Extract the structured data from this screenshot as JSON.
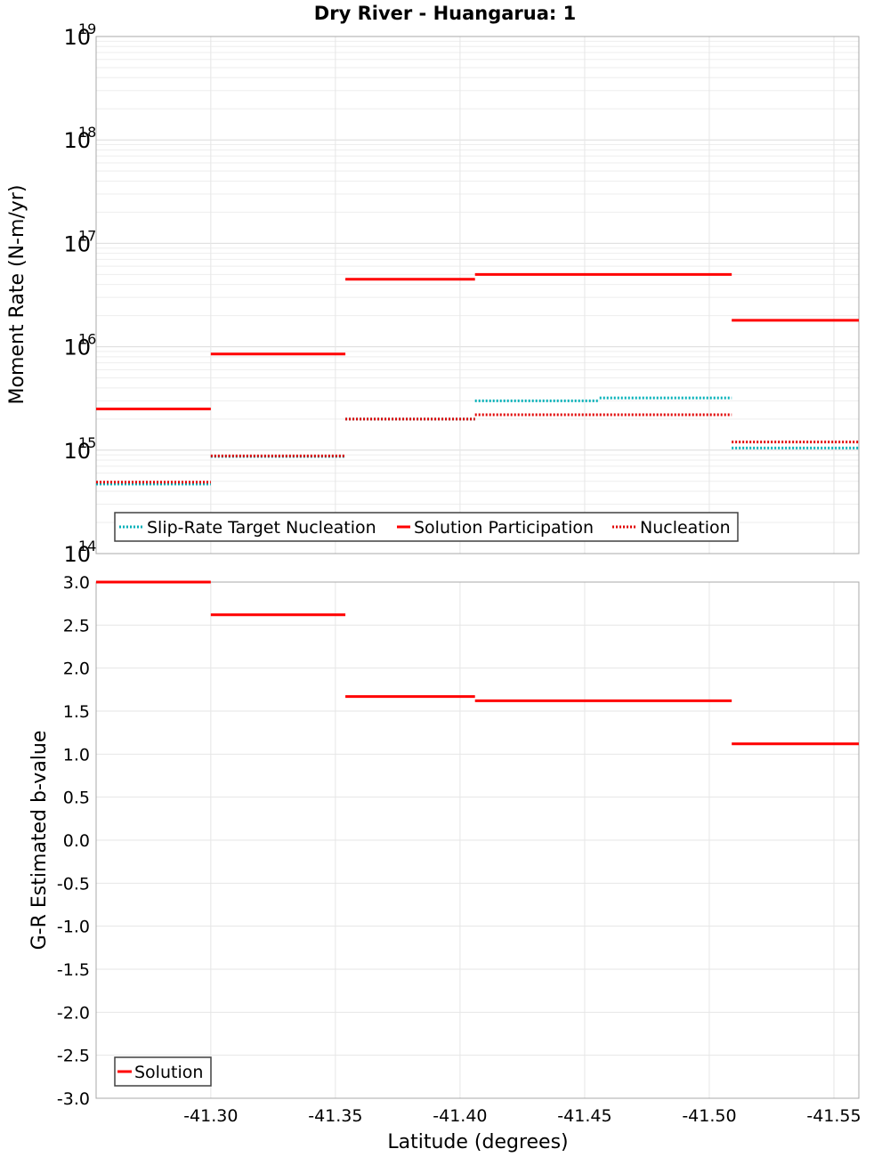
{
  "chart_data": [
    {
      "type": "line",
      "title": "Dry River - Huangarua: 1",
      "xlabel": "Latitude (degrees)",
      "ylabel": "Moment Rate (N-m/yr)",
      "yscale": "log",
      "ylim": [
        100000000000000.0,
        1e+19
      ],
      "xlim": [
        -41.254,
        -41.56
      ],
      "xticks": [
        -41.3,
        -41.35,
        -41.4,
        -41.45,
        -41.5,
        -41.55
      ],
      "xtick_labels": [
        "-41.30",
        "-41.35",
        "-41.40",
        "-41.45",
        "-41.50",
        "-41.55"
      ],
      "ytick_labels": [
        {
          "base": "10",
          "exp": "14",
          "value": 100000000000000.0
        },
        {
          "base": "10",
          "exp": "15",
          "value": 1000000000000000.0
        },
        {
          "base": "10",
          "exp": "16",
          "value": 1e+16
        },
        {
          "base": "10",
          "exp": "17",
          "value": 1e+17
        },
        {
          "base": "10",
          "exp": "18",
          "value": 1e+18
        },
        {
          "base": "10",
          "exp": "19",
          "value": 1e+19
        }
      ],
      "legend": {
        "position": "bottom-left",
        "entries": [
          "Slip-Rate Target Nucleation",
          "Solution Participation",
          "Nucleation"
        ]
      },
      "series": [
        {
          "name": "Slip-Rate Target Nucleation",
          "color": "#00b0b8",
          "style": "dotted",
          "segments": [
            {
              "x0": -41.254,
              "x1": -41.3,
              "y": 470000000000000.0
            },
            {
              "x0": -41.3,
              "x1": -41.354,
              "y": 870000000000000.0
            },
            {
              "x0": -41.354,
              "x1": -41.406,
              "y": 2000000000000000.0
            },
            {
              "x0": -41.406,
              "x1": -41.456,
              "y": 3000000000000000.0
            },
            {
              "x0": -41.456,
              "x1": -41.509,
              "y": 3200000000000000.0
            },
            {
              "x0": -41.509,
              "x1": -41.56,
              "y": 1050000000000000.0
            }
          ]
        },
        {
          "name": "Solution Participation",
          "color": "#ff0000",
          "style": "solid",
          "segments": [
            {
              "x0": -41.254,
              "x1": -41.3,
              "y": 2500000000000000.0
            },
            {
              "x0": -41.3,
              "x1": -41.354,
              "y": 8500000000000000.0
            },
            {
              "x0": -41.354,
              "x1": -41.406,
              "y": 4.5e+16
            },
            {
              "x0": -41.406,
              "x1": -41.509,
              "y": 5e+16
            },
            {
              "x0": -41.509,
              "x1": -41.56,
              "y": 1.8e+16
            }
          ]
        },
        {
          "name": "Nucleation",
          "color": "#e00000",
          "style": "dotted",
          "segments": [
            {
              "x0": -41.254,
              "x1": -41.3,
              "y": 490000000000000.0
            },
            {
              "x0": -41.3,
              "x1": -41.354,
              "y": 880000000000000.0
            },
            {
              "x0": -41.354,
              "x1": -41.406,
              "y": 2000000000000000.0
            },
            {
              "x0": -41.406,
              "x1": -41.509,
              "y": 2200000000000000.0
            },
            {
              "x0": -41.509,
              "x1": -41.56,
              "y": 1200000000000000.0
            }
          ]
        }
      ]
    },
    {
      "type": "line",
      "title": "",
      "xlabel": "Latitude (degrees)",
      "ylabel": "G-R Estimated b-value",
      "ylim": [
        -3.0,
        3.0
      ],
      "xlim": [
        -41.254,
        -41.56
      ],
      "yticks": [
        3.0,
        2.5,
        2.0,
        1.5,
        1.0,
        0.5,
        0.0,
        -0.5,
        -1.0,
        -1.5,
        -2.0,
        -2.5,
        -3.0
      ],
      "ytick_labels": [
        "3.0",
        "2.5",
        "2.0",
        "1.5",
        "1.0",
        "0.5",
        "0.0",
        "-0.5",
        "-1.0",
        "-1.5",
        "-2.0",
        "-2.5",
        "-3.0"
      ],
      "legend": {
        "position": "bottom-left",
        "entries": [
          "Solution"
        ]
      },
      "series": [
        {
          "name": "Solution",
          "color": "#ff0000",
          "style": "solid",
          "segments": [
            {
              "x0": -41.254,
              "x1": -41.3,
              "y": 3.0
            },
            {
              "x0": -41.3,
              "x1": -41.354,
              "y": 2.62
            },
            {
              "x0": -41.354,
              "x1": -41.406,
              "y": 1.67
            },
            {
              "x0": -41.406,
              "x1": -41.509,
              "y": 1.62
            },
            {
              "x0": -41.509,
              "x1": -41.56,
              "y": 1.12
            }
          ]
        }
      ]
    }
  ]
}
